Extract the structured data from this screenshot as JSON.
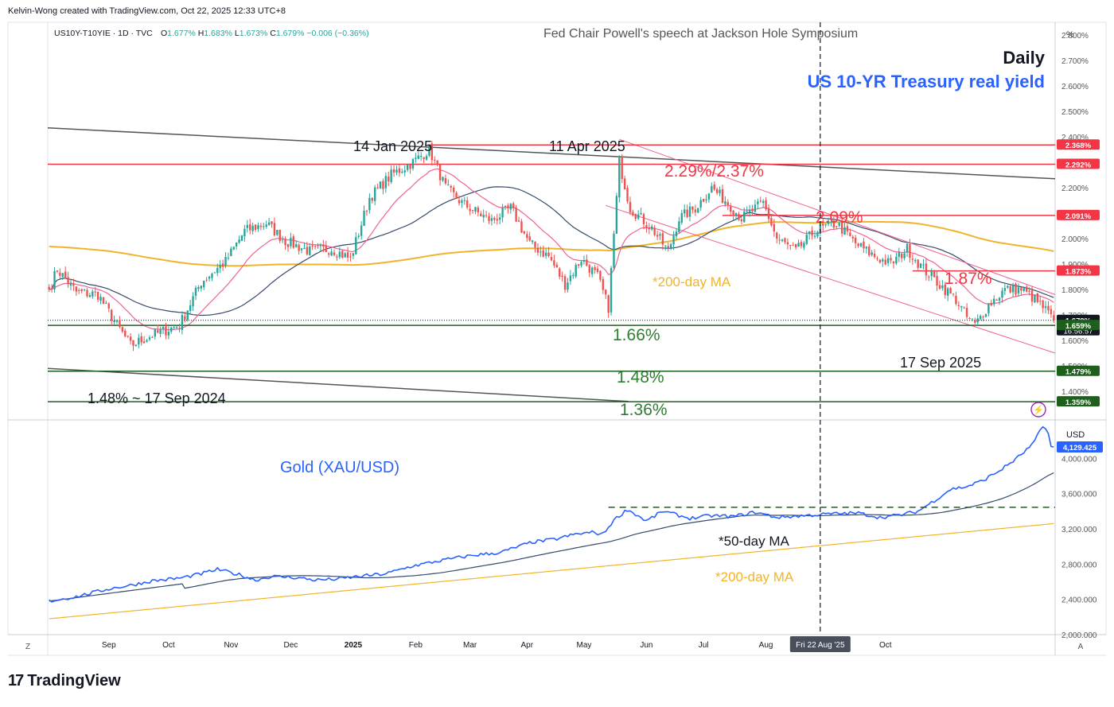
{
  "header": {
    "credit": "Kelvin-Wong created with TradingView.com, Oct 22, 2025 12:33 UTC+8",
    "symbol": "US10Y-T10YIE · 1D · TVC",
    "ohlc": {
      "o_label": "O",
      "o": "1.677%",
      "h_label": "H",
      "h": "1.683%",
      "l_label": "L",
      "l": "1.673%",
      "c_label": "C",
      "c": "1.679%",
      "change": "−0.006 (−0.36%)"
    }
  },
  "brand": {
    "logo_text": "17",
    "name": "TradingView"
  },
  "colors": {
    "up": "#26a69a",
    "down": "#ef5350",
    "red_line": "#f23645",
    "green_line": "#1e5f1e",
    "ema20": "#f06292",
    "ma50": "#364a6e",
    "ma200": "#f0b429",
    "trend": "#555555",
    "gold": "#2962ff",
    "title_blue": "#2962ff",
    "label_red": "#f23645",
    "label_green": "#2e7d32"
  },
  "chart_data": [
    {
      "type": "candlestick",
      "title": "US 10-YR Treasury real yield",
      "timeframe_label": "Daily",
      "unit_label": "%",
      "yaxis": {
        "min": 1.3,
        "max": 2.85,
        "ticks": [
          "2.800%",
          "2.700%",
          "2.600%",
          "2.500%",
          "2.400%",
          "2.300%",
          "2.200%",
          "2.100%",
          "2.000%",
          "1.900%",
          "1.800%",
          "1.700%",
          "1.600%",
          "1.500%",
          "1.400%"
        ]
      },
      "price_tags": [
        {
          "value": 2.368,
          "text": "2.368%",
          "color": "red"
        },
        {
          "value": 2.292,
          "text": "2.292%",
          "color": "red"
        },
        {
          "value": 2.091,
          "text": "2.091%",
          "color": "red"
        },
        {
          "value": 1.873,
          "text": "1.873%",
          "color": "red"
        },
        {
          "value": 1.679,
          "text": "1.679%",
          "color": "dark",
          "sub": "16:56:57"
        },
        {
          "value": 1.659,
          "text": "1.659%",
          "color": "green"
        },
        {
          "value": 1.479,
          "text": "1.479%",
          "color": "green"
        },
        {
          "value": 1.359,
          "text": "1.359%",
          "color": "green"
        }
      ],
      "horizontal_levels": [
        {
          "value": 2.368,
          "color": "red",
          "label": "2.29%/2.37%"
        },
        {
          "value": 2.292,
          "color": "red"
        },
        {
          "value": 2.091,
          "color": "red",
          "label": "2.09%"
        },
        {
          "value": 1.873,
          "color": "red",
          "label": "1.87%"
        },
        {
          "value": 1.659,
          "color": "green",
          "label": "1.66%"
        },
        {
          "value": 1.479,
          "color": "green",
          "label": "1.48%"
        },
        {
          "value": 1.359,
          "color": "green",
          "label": "1.36%"
        }
      ],
      "annotations": [
        "14 Jan 2025",
        "11 Apr 2025",
        "17 Sep 2025",
        "1.48%  ~ 17 Sep 2024",
        "*200-day MA",
        "Fed Chair Powell's speech at Jackson Hole Symposium"
      ],
      "anchor_closes": [
        [
          0,
          1.8
        ],
        [
          3,
          1.88
        ],
        [
          10,
          1.79
        ],
        [
          18,
          1.78
        ],
        [
          25,
          1.66
        ],
        [
          30,
          1.58
        ],
        [
          38,
          1.62
        ],
        [
          48,
          1.66
        ],
        [
          56,
          1.83
        ],
        [
          65,
          1.91
        ],
        [
          72,
          2.03
        ],
        [
          80,
          2.06
        ],
        [
          87,
          1.99
        ],
        [
          96,
          1.95
        ],
        [
          104,
          1.96
        ],
        [
          111,
          1.92
        ],
        [
          118,
          2.16
        ],
        [
          126,
          2.25
        ],
        [
          134,
          2.3
        ],
        [
          140,
          2.35
        ],
        [
          146,
          2.2
        ],
        [
          152,
          2.14
        ],
        [
          158,
          2.1
        ],
        [
          163,
          2.07
        ],
        [
          170,
          2.12
        ],
        [
          177,
          1.98
        ],
        [
          184,
          1.93
        ],
        [
          190,
          1.82
        ],
        [
          196,
          1.92
        ],
        [
          202,
          1.85
        ],
        [
          206,
          1.73
        ],
        [
          210,
          2.3
        ],
        [
          214,
          2.12
        ],
        [
          222,
          2.04
        ],
        [
          228,
          1.95
        ],
        [
          232,
          2.08
        ],
        [
          238,
          2.12
        ],
        [
          244,
          2.2
        ],
        [
          250,
          2.14
        ],
        [
          255,
          2.08
        ],
        [
          263,
          2.14
        ],
        [
          268,
          2.0
        ],
        [
          275,
          1.95
        ],
        [
          282,
          2.03
        ],
        [
          290,
          2.06
        ],
        [
          297,
          1.98
        ],
        [
          304,
          1.93
        ],
        [
          310,
          1.9
        ],
        [
          316,
          1.96
        ],
        [
          322,
          1.88
        ],
        [
          328,
          1.82
        ],
        [
          334,
          1.76
        ],
        [
          338,
          1.69
        ],
        [
          341,
          1.66
        ],
        [
          346,
          1.74
        ],
        [
          352,
          1.8
        ],
        [
          358,
          1.8
        ],
        [
          362,
          1.77
        ],
        [
          366,
          1.73
        ],
        [
          370,
          1.68
        ]
      ]
    },
    {
      "type": "line",
      "title": "Gold (XAU/USD)",
      "unit_label": "USD",
      "yaxis": {
        "min": 2000,
        "max": 4400,
        "ticks": [
          "4,000.000",
          "3,600.000",
          "3,200.000",
          "2,800.000",
          "2,400.000",
          "2,000.000"
        ]
      },
      "last_price_tag": "4,129.425",
      "labels": {
        "ma50": "*50-day MA",
        "ma200": "*200-day MA"
      },
      "resistance_level": 3445,
      "anchor_closes": [
        [
          0,
          2380
        ],
        [
          10,
          2430
        ],
        [
          22,
          2520
        ],
        [
          30,
          2560
        ],
        [
          38,
          2610
        ],
        [
          48,
          2640
        ],
        [
          56,
          2690
        ],
        [
          62,
          2740
        ],
        [
          70,
          2680
        ],
        [
          76,
          2620
        ],
        [
          82,
          2660
        ],
        [
          90,
          2650
        ],
        [
          98,
          2620
        ],
        [
          106,
          2630
        ],
        [
          114,
          2660
        ],
        [
          124,
          2690
        ],
        [
          134,
          2780
        ],
        [
          146,
          2850
        ],
        [
          156,
          2900
        ],
        [
          166,
          2930
        ],
        [
          178,
          3050
        ],
        [
          186,
          3080
        ],
        [
          194,
          3140
        ],
        [
          200,
          3160
        ],
        [
          204,
          3140
        ],
        [
          208,
          3300
        ],
        [
          213,
          3420
        ],
        [
          220,
          3290
        ],
        [
          226,
          3400
        ],
        [
          236,
          3320
        ],
        [
          244,
          3350
        ],
        [
          252,
          3340
        ],
        [
          260,
          3390
        ],
        [
          268,
          3330
        ],
        [
          278,
          3350
        ],
        [
          288,
          3370
        ],
        [
          298,
          3380
        ],
        [
          306,
          3330
        ],
        [
          314,
          3360
        ],
        [
          320,
          3400
        ],
        [
          326,
          3520
        ],
        [
          332,
          3650
        ],
        [
          338,
          3680
        ],
        [
          344,
          3750
        ],
        [
          350,
          3860
        ],
        [
          356,
          3990
        ],
        [
          362,
          4150
        ],
        [
          366,
          4360
        ],
        [
          368,
          4300
        ],
        [
          369,
          4130
        ],
        [
          370,
          4129
        ]
      ]
    }
  ],
  "xaxis": {
    "labels": [
      {
        "text": "Sep",
        "bar": 22
      },
      {
        "text": "Oct",
        "bar": 44
      },
      {
        "text": "Nov",
        "bar": 67
      },
      {
        "text": "Dec",
        "bar": 89
      },
      {
        "text": "2025",
        "bar": 112,
        "bold": true
      },
      {
        "text": "Feb",
        "bar": 135
      },
      {
        "text": "Mar",
        "bar": 155
      },
      {
        "text": "Apr",
        "bar": 176
      },
      {
        "text": "May",
        "bar": 197
      },
      {
        "text": "Jun",
        "bar": 220
      },
      {
        "text": "Jul",
        "bar": 241
      },
      {
        "text": "Aug",
        "bar": 264
      },
      {
        "text": "Oct",
        "bar": 308
      }
    ],
    "highlight": {
      "text": "Fri 22 Aug '25",
      "bar": 284
    },
    "left_button": "Z",
    "right_button": "A"
  }
}
